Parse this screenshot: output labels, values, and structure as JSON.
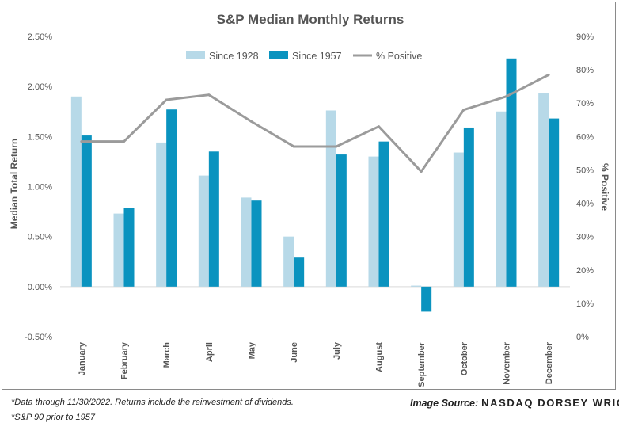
{
  "chart_data": {
    "type": "bar",
    "title": "S&P Median Monthly Returns",
    "categories": [
      "January",
      "February",
      "March",
      "April",
      "May",
      "June",
      "July",
      "August",
      "September",
      "October",
      "November",
      "December"
    ],
    "series": [
      {
        "name": "Since 1928",
        "type": "bar",
        "axis": "left",
        "color": "#b7d9e8",
        "values": [
          1.9,
          0.73,
          1.44,
          1.11,
          0.89,
          0.5,
          1.76,
          1.3,
          0.01,
          1.34,
          1.75,
          1.93
        ]
      },
      {
        "name": "Since 1957",
        "type": "bar",
        "axis": "left",
        "color": "#0a93bf",
        "values": [
          1.51,
          0.79,
          1.77,
          1.35,
          0.86,
          0.29,
          1.32,
          1.45,
          -0.25,
          1.59,
          2.28,
          1.68
        ]
      },
      {
        "name": "% Positive",
        "type": "line",
        "axis": "right",
        "color": "#9b9b9b",
        "values": [
          58.5,
          58.5,
          71,
          72.5,
          64.5,
          57,
          57,
          63,
          49.5,
          68,
          72,
          78.5
        ]
      }
    ],
    "ylabel": "Median Total Return",
    "y2label": "% Positive",
    "ylim": [
      -0.5,
      2.5
    ],
    "y2lim": [
      0,
      90
    ],
    "yticks": [
      "2.50%",
      "2.00%",
      "1.50%",
      "1.00%",
      "0.50%",
      "0.00%",
      "-0.50%"
    ],
    "y2ticks": [
      "90%",
      "80%",
      "70%",
      "60%",
      "50%",
      "40%",
      "30%",
      "20%",
      "10%",
      "0%"
    ],
    "legend": "top-center",
    "grid": false
  },
  "footnotes": [
    "*Data through 11/30/2022. Returns include the reinvestment of dividends.",
    "*S&P 90 prior to 1957"
  ],
  "source": {
    "label": "Image Source:",
    "name": "NASDAQ DORSEY WRIGHT"
  }
}
